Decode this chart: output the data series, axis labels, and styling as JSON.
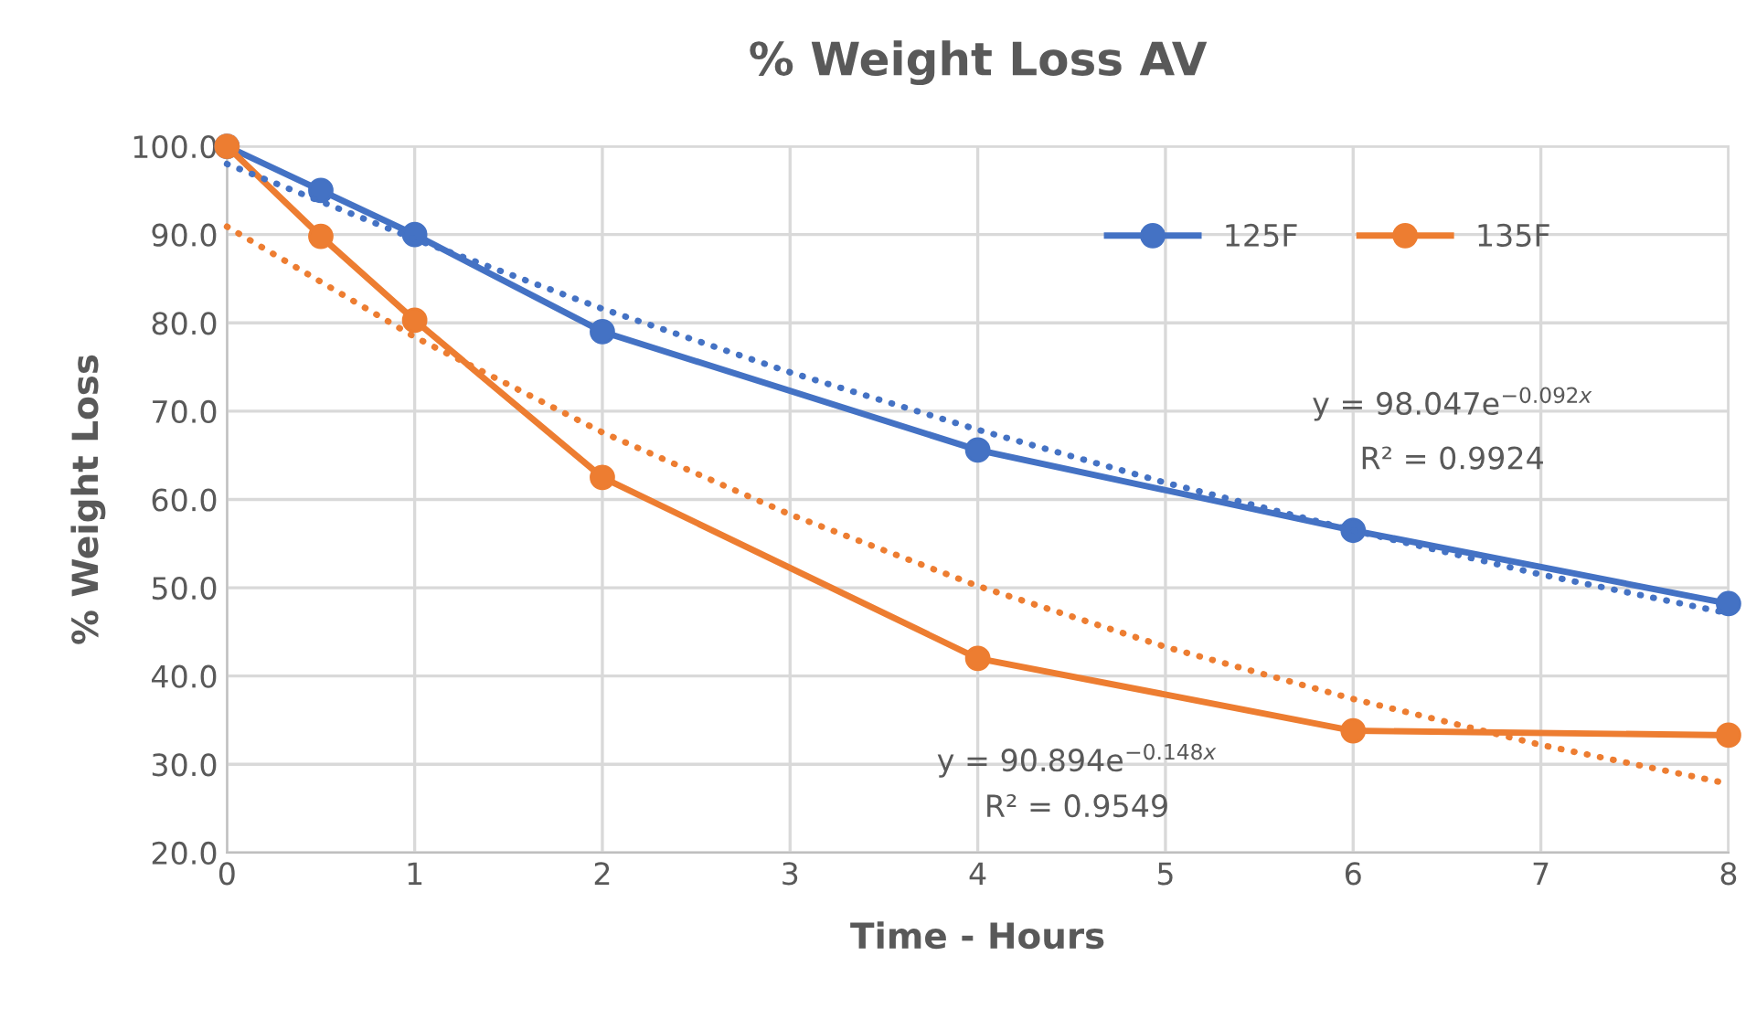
{
  "chart_data": {
    "type": "line",
    "title": "% Weight Loss AV",
    "xlabel": "Time - Hours",
    "ylabel": "% Weight Loss",
    "xlim": [
      0,
      8
    ],
    "xticks": [
      0,
      1,
      2,
      3,
      4,
      5,
      6,
      7,
      8
    ],
    "ylim": [
      20,
      100
    ],
    "yticks": [
      {
        "value": 20,
        "label": "20.0"
      },
      {
        "value": 30,
        "label": "30.0"
      },
      {
        "value": 40,
        "label": "40.0"
      },
      {
        "value": 50,
        "label": "50.0"
      },
      {
        "value": 60,
        "label": "60.0"
      },
      {
        "value": 70,
        "label": "70.0"
      },
      {
        "value": 80,
        "label": "80.0"
      },
      {
        "value": 90,
        "label": "90.0"
      },
      {
        "value": 100,
        "label": "100.0"
      }
    ],
    "grid": true,
    "legend": "top right",
    "marker": "circle",
    "line_style": "solid",
    "x": [
      0,
      0.5,
      1,
      2,
      4,
      6,
      8
    ],
    "series": [
      {
        "name": "125F",
        "color": "#4472c4",
        "values": [
          100,
          95.0,
          90.0,
          79.0,
          65.6,
          56.5,
          48.2
        ]
      },
      {
        "name": "135F",
        "color": "#ed7d31",
        "values": [
          100,
          89.8,
          80.3,
          62.5,
          42.0,
          33.8,
          33.3
        ]
      },
      {
        "type": "line",
        "color": "#4472c4",
        "marker": "none",
        "line_style": "dotted",
        "x": [
          0,
          1,
          2,
          3,
          4,
          5,
          6,
          7,
          8
        ],
        "values": [
          98.0,
          89.5,
          81.6,
          74.4,
          67.9,
          61.9,
          56.5,
          51.5,
          47.1
        ]
      },
      {
        "type": "line",
        "color": "#ed7d31",
        "marker": "none",
        "line_style": "dotted",
        "x": [
          0,
          1,
          2,
          3,
          4,
          5,
          6,
          7,
          8
        ],
        "values": [
          90.9,
          78.4,
          67.6,
          58.3,
          50.2,
          43.3,
          37.4,
          32.2,
          27.8
        ]
      }
    ],
    "annotations": [
      "y = 98.047e$^{−0.092x}$",
      "R² = 0.9924",
      "y = 90.894e$^{−0.148x}$",
      "R² = 0.9549"
    ]
  }
}
